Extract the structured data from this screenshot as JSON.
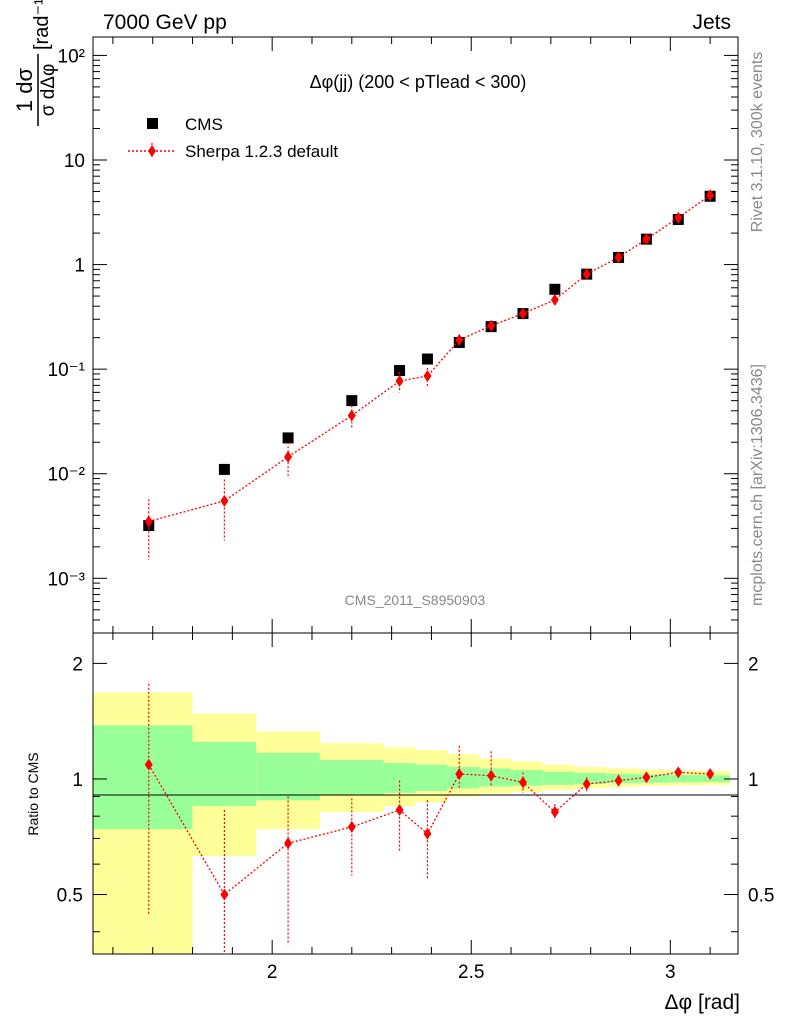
{
  "header": {
    "left": "7000 GeV pp",
    "right": "Jets"
  },
  "side": {
    "rivet": "Rivet 3.1.10,  300k events",
    "mcplots": "mcplots.cern.ch [arXiv:1306.3436]"
  },
  "chart_data": [
    {
      "type": "scatter",
      "title": "Δφ(jj) (200 < pTlead <  300)",
      "watermark": "CMS_2011_S8950903",
      "ylabel_main": "1/σ dσ/dΔφ [rad⁻¹]",
      "ylabel_prefix": "1 dσ",
      "ylabel_denominator": "σ dΔφ",
      "ylabel_unit": "[rad⁻¹]",
      "y_scale": "log",
      "ylim": [
        0.0003,
        150
      ],
      "xlim": [
        1.55,
        3.17
      ],
      "y_tick_labels": [
        "10⁻³",
        "10⁻²",
        "10⁻¹",
        "1",
        "10",
        "10²"
      ],
      "legend_position": "top-left",
      "colors": {
        "data": "#000000",
        "mc": "#ff0000"
      },
      "series": [
        {
          "name": "CMS",
          "marker": "square",
          "x": [
            1.69,
            1.88,
            2.04,
            2.2,
            2.32,
            2.39,
            2.47,
            2.55,
            2.63,
            2.71,
            2.79,
            2.87,
            2.94,
            3.02,
            3.1
          ],
          "y": [
            0.0032,
            0.011,
            0.022,
            0.05,
            0.097,
            0.125,
            0.18,
            0.255,
            0.34,
            0.58,
            0.81,
            1.17,
            1.75,
            2.7,
            4.5
          ]
        },
        {
          "name": "Sherpa 1.2.3 default",
          "marker": "diamond",
          "x": [
            1.69,
            1.88,
            2.04,
            2.2,
            2.32,
            2.39,
            2.47,
            2.55,
            2.63,
            2.71,
            2.79,
            2.87,
            2.94,
            3.02,
            3.1
          ],
          "y": [
            0.0035,
            0.0055,
            0.0145,
            0.036,
            0.077,
            0.086,
            0.19,
            0.26,
            0.34,
            0.46,
            0.81,
            1.17,
            1.75,
            2.8,
            4.6
          ],
          "yerr_low": [
            0.002,
            0.0032,
            0.005,
            0.009,
            0.017,
            0.017,
            0.02,
            0.022,
            0.02,
            0.03,
            0.05,
            0.06,
            0.08,
            0.1,
            0.15
          ],
          "yerr_high": [
            0.0022,
            0.0033,
            0.0055,
            0.009,
            0.017,
            0.017,
            0.025,
            0.025,
            0.02,
            0.03,
            0.05,
            0.06,
            0.08,
            0.1,
            0.15
          ]
        }
      ]
    },
    {
      "type": "scatter",
      "ylabel": "Ratio to CMS",
      "xlabel": "Δφ [rad]",
      "y_scale": "log",
      "ylim": [
        0.35,
        2.4
      ],
      "xlim": [
        1.55,
        3.17
      ],
      "x_tick_labels": [
        "2",
        "2.5",
        "3"
      ],
      "y_tick_labels": [
        "0.5",
        "1",
        "2"
      ],
      "colors": {
        "band_inner": "#99ff99",
        "band_outer": "#ffff99",
        "mc": "#ff0000"
      },
      "bands": {
        "edges": [
          1.55,
          1.8,
          1.96,
          2.12,
          2.28,
          2.36,
          2.44,
          2.52,
          2.6,
          2.68,
          2.76,
          2.84,
          2.92,
          3.0,
          3.08,
          3.15
        ],
        "inner_low": [
          0.74,
          0.85,
          0.88,
          0.91,
          0.92,
          0.93,
          0.945,
          0.955,
          0.96,
          0.965,
          0.97,
          0.975,
          0.978,
          0.98,
          0.982
        ],
        "inner_high": [
          1.38,
          1.25,
          1.17,
          1.12,
          1.1,
          1.09,
          1.075,
          1.065,
          1.055,
          1.045,
          1.038,
          1.032,
          1.028,
          1.025,
          1.022
        ],
        "outer_low": [
          0.35,
          0.63,
          0.74,
          0.82,
          0.85,
          0.87,
          0.9,
          0.915,
          0.925,
          0.935,
          0.945,
          0.952,
          0.958,
          0.962,
          0.965
        ],
        "outer_high": [
          1.68,
          1.48,
          1.33,
          1.24,
          1.21,
          1.19,
          1.16,
          1.13,
          1.11,
          1.09,
          1.075,
          1.065,
          1.058,
          1.052,
          1.048
        ]
      },
      "series": [
        {
          "name": "Sherpa 1.2.3 default",
          "marker": "diamond",
          "x": [
            1.69,
            1.88,
            2.04,
            2.2,
            2.32,
            2.39,
            2.47,
            2.55,
            2.63,
            2.71,
            2.79,
            2.87,
            2.94,
            3.02,
            3.1
          ],
          "y": [
            1.09,
            0.5,
            0.68,
            0.75,
            0.83,
            0.72,
            1.03,
            1.02,
            0.98,
            0.82,
            0.97,
            0.99,
            1.01,
            1.04,
            1.03
          ],
          "yerr_low": [
            0.65,
            0.15,
            0.31,
            0.19,
            0.18,
            0.17,
            0.08,
            0.07,
            0.06,
            0.04,
            0.04,
            0.035,
            0.03,
            0.03,
            0.025
          ],
          "yerr_high": [
            0.68,
            0.33,
            0.22,
            0.14,
            0.16,
            0.16,
            0.19,
            0.16,
            0.06,
            0.04,
            0.04,
            0.035,
            0.03,
            0.03,
            0.025
          ]
        }
      ]
    }
  ]
}
